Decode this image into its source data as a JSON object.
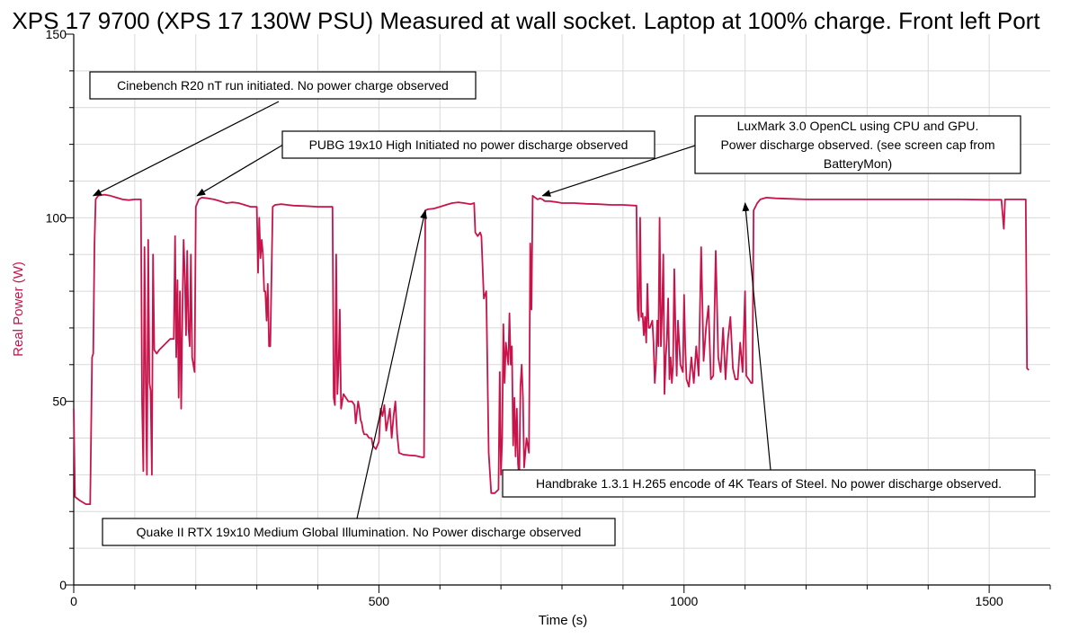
{
  "chart_data": {
    "type": "line",
    "title": "XPS 17 9700 (XPS 17 130W PSU) Measured at wall socket. Laptop at 100% charge. Front left Port",
    "xlabel": "Time (s)",
    "ylabel": "Real Power (W)",
    "xlim": [
      0,
      1600
    ],
    "ylim": [
      0,
      150
    ],
    "x_ticks": [
      "0",
      "500",
      "1000",
      "1500"
    ],
    "y_ticks": [
      "0",
      "50",
      "100",
      "150"
    ],
    "grid": true,
    "colors": {
      "line": "#c8144b",
      "ylabel": "#c8144b",
      "grid": "#d9d9d9",
      "axis": "#000000"
    },
    "series": [
      {
        "name": "",
        "points": [
          [
            0,
            48
          ],
          [
            2,
            24
          ],
          [
            10,
            23
          ],
          [
            20,
            22
          ],
          [
            27,
            22
          ],
          [
            30,
            62
          ],
          [
            32,
            63
          ],
          [
            34,
            93
          ],
          [
            36,
            105
          ],
          [
            40,
            106
          ],
          [
            50,
            106.3
          ],
          [
            60,
            106
          ],
          [
            70,
            105.5
          ],
          [
            80,
            105
          ],
          [
            90,
            104.8
          ],
          [
            100,
            105
          ],
          [
            105,
            105
          ],
          [
            108,
            105
          ],
          [
            110,
            105
          ],
          [
            112,
            50
          ],
          [
            114,
            31
          ],
          [
            116,
            92
          ],
          [
            118,
            55
          ],
          [
            120,
            30
          ],
          [
            122,
            94
          ],
          [
            124,
            55
          ],
          [
            126,
            53
          ],
          [
            128,
            30
          ],
          [
            130,
            90
          ],
          [
            132,
            64
          ],
          [
            136,
            63
          ],
          [
            140,
            64
          ],
          [
            146,
            65
          ],
          [
            152,
            66
          ],
          [
            158,
            67
          ],
          [
            164,
            67
          ],
          [
            166,
            95
          ],
          [
            168,
            62
          ],
          [
            170,
            83
          ],
          [
            172,
            51
          ],
          [
            174,
            80
          ],
          [
            176,
            48
          ],
          [
            178,
            73
          ],
          [
            180,
            94
          ],
          [
            182,
            85
          ],
          [
            184,
            68
          ],
          [
            186,
            91
          ],
          [
            188,
            70
          ],
          [
            190,
            65
          ],
          [
            192,
            90
          ],
          [
            194,
            62
          ],
          [
            196,
            60
          ],
          [
            198,
            58
          ],
          [
            200,
            103
          ],
          [
            205,
            105
          ],
          [
            210,
            105.5
          ],
          [
            220,
            105.3
          ],
          [
            230,
            105
          ],
          [
            240,
            104.5
          ],
          [
            250,
            104
          ],
          [
            260,
            104.2
          ],
          [
            270,
            104
          ],
          [
            280,
            103.5
          ],
          [
            290,
            103
          ],
          [
            300,
            103
          ],
          [
            302,
            85
          ],
          [
            304,
            100
          ],
          [
            306,
            89
          ],
          [
            308,
            94
          ],
          [
            310,
            90
          ],
          [
            312,
            80
          ],
          [
            314,
            80
          ],
          [
            316,
            72
          ],
          [
            318,
            82
          ],
          [
            320,
            65
          ],
          [
            322,
            65
          ],
          [
            326,
            103
          ],
          [
            330,
            103.5
          ],
          [
            340,
            103.7
          ],
          [
            350,
            103.5
          ],
          [
            360,
            103.3
          ],
          [
            380,
            103.2
          ],
          [
            400,
            103
          ],
          [
            420,
            103
          ],
          [
            424,
            103
          ],
          [
            426,
            51
          ],
          [
            428,
            49
          ],
          [
            430,
            90
          ],
          [
            432,
            52
          ],
          [
            434,
            60
          ],
          [
            436,
            75
          ],
          [
            438,
            48
          ],
          [
            442,
            52
          ],
          [
            446,
            51
          ],
          [
            450,
            50
          ],
          [
            456,
            50
          ],
          [
            460,
            49
          ],
          [
            462,
            44
          ],
          [
            466,
            50
          ],
          [
            468,
            48
          ],
          [
            470,
            45
          ],
          [
            472,
            44
          ],
          [
            474,
            42
          ],
          [
            476,
            41
          ],
          [
            480,
            41
          ],
          [
            484,
            40
          ],
          [
            488,
            40
          ],
          [
            490,
            38
          ],
          [
            495,
            37
          ],
          [
            500,
            39
          ],
          [
            503,
            48
          ],
          [
            506,
            46
          ],
          [
            509,
            49
          ],
          [
            512,
            42
          ],
          [
            515,
            45
          ],
          [
            518,
            48
          ],
          [
            521,
            40
          ],
          [
            524,
            46
          ],
          [
            527,
            50
          ],
          [
            530,
            41
          ],
          [
            533,
            36
          ],
          [
            540,
            35.5
          ],
          [
            550,
            35.3
          ],
          [
            560,
            35.2
          ],
          [
            570,
            34.8
          ],
          [
            574,
            34.8
          ],
          [
            576,
            102
          ],
          [
            580,
            102.3
          ],
          [
            590,
            102.5
          ],
          [
            600,
            103
          ],
          [
            610,
            103.5
          ],
          [
            620,
            104
          ],
          [
            630,
            104.2
          ],
          [
            640,
            104
          ],
          [
            650,
            103.7
          ],
          [
            656,
            104
          ],
          [
            658,
            96
          ],
          [
            662,
            95
          ],
          [
            666,
            96
          ],
          [
            668,
            95
          ],
          [
            672,
            78
          ],
          [
            676,
            80
          ],
          [
            680,
            36
          ],
          [
            684,
            25
          ],
          [
            690,
            25
          ],
          [
            696,
            26
          ],
          [
            698,
            58
          ],
          [
            700,
            30
          ],
          [
            702,
            40
          ],
          [
            704,
            71
          ],
          [
            706,
            55
          ],
          [
            708,
            66
          ],
          [
            710,
            63
          ],
          [
            712,
            60
          ],
          [
            714,
            74
          ],
          [
            716,
            60
          ],
          [
            718,
            65
          ],
          [
            720,
            38
          ],
          [
            722,
            51
          ],
          [
            724,
            35
          ],
          [
            726,
            48
          ],
          [
            728,
            33
          ],
          [
            730,
            29
          ],
          [
            732,
            54
          ],
          [
            734,
            60
          ],
          [
            736,
            51
          ],
          [
            738,
            32
          ],
          [
            742,
            40
          ],
          [
            746,
            36
          ],
          [
            748,
            93
          ],
          [
            750,
            75
          ],
          [
            752,
            106
          ],
          [
            756,
            105.5
          ],
          [
            760,
            105
          ],
          [
            764,
            105.3
          ],
          [
            768,
            105
          ],
          [
            772,
            104.5
          ],
          [
            780,
            104.5
          ],
          [
            790,
            104.3
          ],
          [
            800,
            104
          ],
          [
            820,
            104
          ],
          [
            840,
            103.8
          ],
          [
            860,
            103.7
          ],
          [
            880,
            103.5
          ],
          [
            900,
            103.5
          ],
          [
            920,
            103.3
          ],
          [
            922,
            103.3
          ],
          [
            924,
            75
          ],
          [
            926,
            72
          ],
          [
            928,
            100
          ],
          [
            930,
            73
          ],
          [
            932,
            74
          ],
          [
            934,
            68
          ],
          [
            936,
            73
          ],
          [
            938,
            66
          ],
          [
            940,
            82
          ],
          [
            942,
            70
          ],
          [
            944,
            70
          ],
          [
            946,
            71
          ],
          [
            948,
            72
          ],
          [
            950,
            66
          ],
          [
            952,
            55
          ],
          [
            954,
            60
          ],
          [
            956,
            72
          ],
          [
            958,
            65
          ],
          [
            960,
            100
          ],
          [
            962,
            65
          ],
          [
            964,
            74
          ],
          [
            966,
            90
          ],
          [
            968,
            52
          ],
          [
            970,
            62
          ],
          [
            972,
            67
          ],
          [
            974,
            78
          ],
          [
            976,
            56
          ],
          [
            978,
            62
          ],
          [
            980,
            55
          ],
          [
            982,
            60
          ],
          [
            984,
            86
          ],
          [
            986,
            70
          ],
          [
            988,
            57
          ],
          [
            990,
            72
          ],
          [
            994,
            60
          ],
          [
            998,
            58
          ],
          [
            1000,
            79
          ],
          [
            1002,
            65
          ],
          [
            1004,
            56
          ],
          [
            1008,
            54
          ],
          [
            1012,
            62
          ],
          [
            1016,
            55
          ],
          [
            1020,
            65
          ],
          [
            1024,
            57
          ],
          [
            1028,
            92
          ],
          [
            1032,
            61
          ],
          [
            1036,
            70
          ],
          [
            1040,
            76
          ],
          [
            1044,
            56
          ],
          [
            1048,
            57
          ],
          [
            1052,
            91
          ],
          [
            1056,
            62
          ],
          [
            1060,
            58
          ],
          [
            1064,
            70
          ],
          [
            1068,
            56
          ],
          [
            1072,
            67
          ],
          [
            1076,
            73
          ],
          [
            1080,
            59
          ],
          [
            1084,
            56
          ],
          [
            1088,
            56
          ],
          [
            1092,
            66
          ],
          [
            1096,
            58
          ],
          [
            1100,
            80
          ],
          [
            1102,
            57
          ],
          [
            1106,
            56
          ],
          [
            1110,
            55
          ],
          [
            1112,
            55
          ],
          [
            1114,
            102
          ],
          [
            1120,
            104
          ],
          [
            1125,
            105
          ],
          [
            1135,
            105.5
          ],
          [
            1150,
            105.3
          ],
          [
            1200,
            105
          ],
          [
            1250,
            105
          ],
          [
            1300,
            105
          ],
          [
            1350,
            105
          ],
          [
            1400,
            105
          ],
          [
            1450,
            105
          ],
          [
            1500,
            104.9
          ],
          [
            1520,
            104.9
          ],
          [
            1524,
            97
          ],
          [
            1526,
            105
          ],
          [
            1540,
            105
          ],
          [
            1555,
            105
          ],
          [
            1560,
            105
          ],
          [
            1562,
            59
          ],
          [
            1565,
            58.5
          ]
        ]
      }
    ],
    "annotations": [
      {
        "id": "cinebench",
        "text": "Cinebench R20 nT run initiated. No power charge observed",
        "target": [
          32,
          106
        ]
      },
      {
        "id": "pubg",
        "text": "PUBG 19x10 High Initiated no power discharge observed",
        "target": [
          202,
          106
        ]
      },
      {
        "id": "luxmark",
        "lines": [
          "LuxMark 3.0 OpenCL using CPU and GPU.",
          "Power discharge observed. (see screen cap from",
          "BatteryMon)"
        ],
        "target": [
          768,
          106
        ]
      },
      {
        "id": "handbrake",
        "text": "Handbrake 1.3.1 H.265 encode of 4K Tears of Steel. No power discharge observed.",
        "target": [
          1100,
          104
        ]
      },
      {
        "id": "quake",
        "text": "Quake II RTX 19x10 Medium Global Illumination. No Power discharge observed",
        "target": [
          576,
          102
        ]
      }
    ]
  }
}
